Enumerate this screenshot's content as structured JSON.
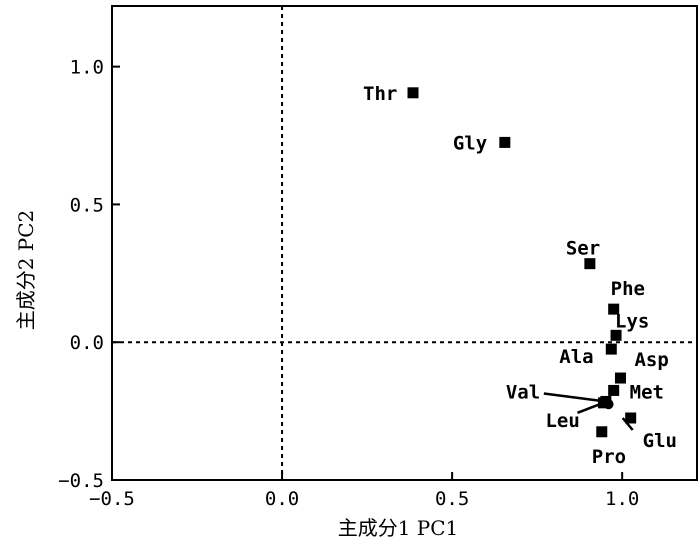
{
  "chart_data": {
    "type": "scatter",
    "title": "",
    "xlabel": "主成分1 PC1",
    "ylabel": "主成分2 PC2",
    "xlim": [
      -0.5,
      1.22
    ],
    "ylim": [
      -0.5,
      1.22
    ],
    "xticks": [
      {
        "value": -0.5,
        "label": "−0.5"
      },
      {
        "value": 0.0,
        "label": "0.0"
      },
      {
        "value": 0.5,
        "label": "0.5"
      },
      {
        "value": 1.0,
        "label": "1.0"
      }
    ],
    "yticks": [
      {
        "value": -0.5,
        "label": "−0.5"
      },
      {
        "value": 0.0,
        "label": "0.0"
      },
      {
        "value": 0.5,
        "label": "0.5"
      },
      {
        "value": 1.0,
        "label": "1.0"
      }
    ],
    "reference_lines": {
      "x": 0,
      "y": 0,
      "style": "dashed"
    },
    "points": [
      {
        "label": "Thr",
        "x": 0.385,
        "y": 0.905
      },
      {
        "label": "Gly",
        "x": 0.655,
        "y": 0.725
      },
      {
        "label": "Ser",
        "x": 0.905,
        "y": 0.285
      },
      {
        "label": "Phe",
        "x": 0.975,
        "y": 0.12
      },
      {
        "label": "Lys",
        "x": 0.982,
        "y": 0.025
      },
      {
        "label": "Ala",
        "x": 0.968,
        "y": -0.025
      },
      {
        "label": "Asp",
        "x": 0.995,
        "y": -0.13
      },
      {
        "label": "Met",
        "x": 0.975,
        "y": -0.175
      },
      {
        "label": "Val",
        "x": 0.952,
        "y": -0.215
      },
      {
        "label": "Leu",
        "x": 0.945,
        "y": -0.22
      },
      {
        "label": "Glu",
        "x": 1.025,
        "y": -0.275
      },
      {
        "label": "Pro",
        "x": 0.94,
        "y": -0.325
      }
    ],
    "grid": false,
    "legend": "none"
  }
}
